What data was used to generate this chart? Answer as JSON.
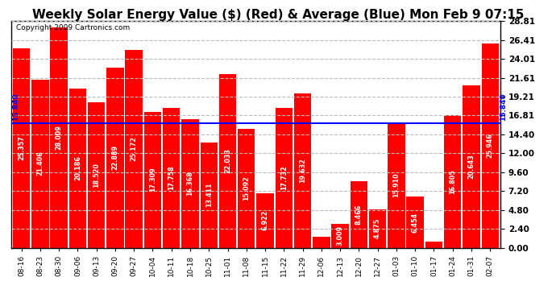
{
  "title": "Weekly Solar Energy Value ($) (Red) & Average (Blue) Mon Feb 9 07:15",
  "copyright": "Copyright 2009 Cartronics.com",
  "categories": [
    "08-16",
    "08-23",
    "08-30",
    "09-06",
    "09-13",
    "09-20",
    "09-27",
    "10-04",
    "10-11",
    "10-18",
    "10-25",
    "11-01",
    "11-08",
    "11-15",
    "11-22",
    "11-29",
    "12-06",
    "12-13",
    "12-20",
    "12-27",
    "01-03",
    "01-10",
    "01-17",
    "01-24",
    "01-31",
    "02-07"
  ],
  "values": [
    25.357,
    21.406,
    28.009,
    20.186,
    18.52,
    22.889,
    25.172,
    17.309,
    17.758,
    16.368,
    13.411,
    22.033,
    15.092,
    6.922,
    17.732,
    19.632,
    1.369,
    3.009,
    8.466,
    4.875,
    15.91,
    6.454,
    0.772,
    16.805,
    20.643,
    25.946
  ],
  "average": 15.84,
  "bar_color": "#FF0000",
  "avg_line_color": "#0000FF",
  "bg_color": "#FFFFFF",
  "plot_bg_color": "#FFFFFF",
  "grid_color": "#BBBBBB",
  "yticks": [
    0.0,
    2.4,
    4.8,
    7.2,
    9.6,
    12.0,
    14.4,
    16.81,
    19.21,
    21.61,
    24.01,
    26.41,
    28.81
  ],
  "ylim": [
    0,
    28.81
  ],
  "title_fontsize": 11,
  "copyright_fontsize": 6.5,
  "bar_label_fontsize": 5.8,
  "avg_label": "15.840",
  "avg_label_fontsize": 6.5
}
